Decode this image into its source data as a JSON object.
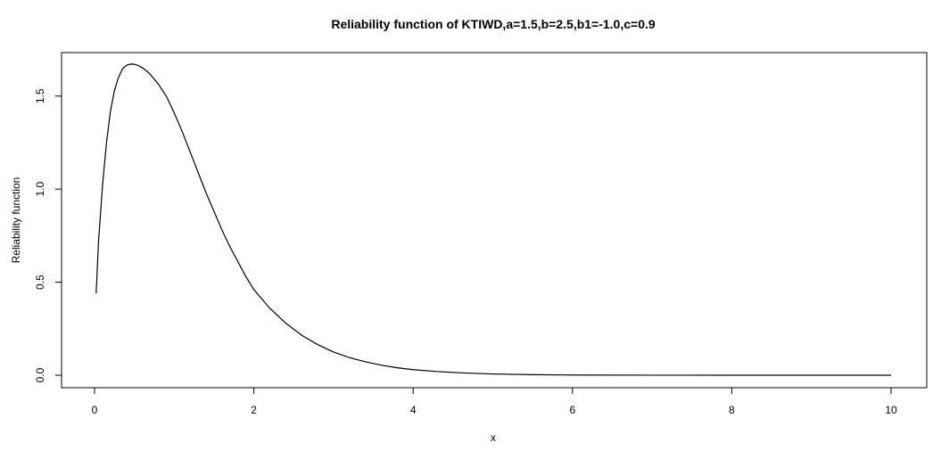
{
  "chart_data": {
    "type": "line",
    "title": "Reliability function of KTIWD,a=1.5,b=2.5,b1=-1.0,c=0.9",
    "xlabel": "x",
    "ylabel": "Reliability function",
    "xlim": [
      0,
      10
    ],
    "ylim": [
      0,
      1.6714
    ],
    "x_ticks": [
      0,
      2,
      4,
      6,
      8,
      10
    ],
    "x_tick_labels": [
      "0",
      "2",
      "4",
      "6",
      "8",
      "10"
    ],
    "y_ticks": [
      0,
      0.5,
      1.0,
      1.5
    ],
    "y_tick_labels": [
      "0.0",
      "0.5",
      "1.0",
      "1.5"
    ],
    "grid": false,
    "series": [
      {
        "x": [
          0.02,
          0.05,
          0.1,
          0.15,
          0.2,
          0.25,
          0.3,
          0.35,
          0.4,
          0.45,
          0.5,
          0.55,
          0.6,
          0.65,
          0.7,
          0.8,
          0.9,
          1.0,
          1.1,
          1.2,
          1.3,
          1.4,
          1.5,
          1.6,
          1.7,
          1.8,
          1.9,
          2.0,
          2.2,
          2.4,
          2.6,
          2.8,
          3.0,
          3.2,
          3.4,
          3.6,
          3.8,
          4.0,
          4.3,
          4.6,
          5.0,
          5.5,
          6.0,
          7.0,
          8.0,
          9.0,
          10.0
        ],
        "y": [
          0.44,
          0.72,
          1.02,
          1.25,
          1.42,
          1.53,
          1.6,
          1.645,
          1.665,
          1.672,
          1.671,
          1.664,
          1.652,
          1.636,
          1.616,
          1.565,
          1.5,
          1.41,
          1.31,
          1.2,
          1.09,
          0.98,
          0.88,
          0.78,
          0.69,
          0.61,
          0.53,
          0.46,
          0.36,
          0.28,
          0.215,
          0.165,
          0.125,
          0.095,
          0.072,
          0.054,
          0.04,
          0.03,
          0.02,
          0.013,
          0.007,
          0.003,
          0.0012,
          0.0003,
          0.0001,
          0.0,
          0.0
        ]
      }
    ]
  }
}
